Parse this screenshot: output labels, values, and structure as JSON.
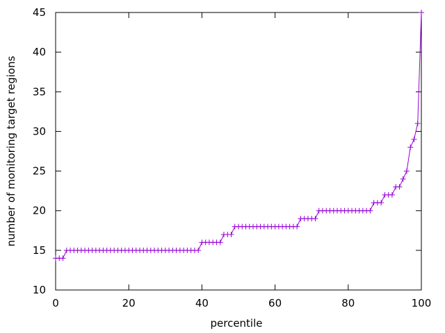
{
  "chart_data": {
    "type": "line",
    "x_label": "percentile",
    "y_label": "number of monitoring target regions",
    "xlim": [
      0,
      100
    ],
    "xticks": [
      0,
      20,
      40,
      60,
      80,
      100
    ],
    "ylim": [
      10,
      45
    ],
    "yticks": [
      10,
      15,
      20,
      25,
      30,
      35,
      40,
      45
    ],
    "series": [
      {
        "color": "#9400d3",
        "x": [
          0,
          1,
          2,
          3,
          4,
          5,
          6,
          7,
          8,
          9,
          10,
          11,
          12,
          13,
          14,
          15,
          16,
          17,
          18,
          19,
          20,
          21,
          22,
          23,
          24,
          25,
          26,
          27,
          28,
          29,
          30,
          31,
          32,
          33,
          34,
          35,
          36,
          37,
          38,
          39,
          40,
          41,
          42,
          43,
          44,
          45,
          46,
          47,
          48,
          49,
          50,
          51,
          52,
          53,
          54,
          55,
          56,
          57,
          58,
          59,
          60,
          61,
          62,
          63,
          64,
          65,
          66,
          67,
          68,
          69,
          70,
          71,
          72,
          73,
          74,
          75,
          76,
          77,
          78,
          79,
          80,
          81,
          82,
          83,
          84,
          85,
          86,
          87,
          88,
          89,
          90,
          91,
          92,
          93,
          94,
          95,
          96,
          97,
          98,
          99,
          100
        ],
        "values": [
          14,
          14,
          14,
          15,
          15,
          15,
          15,
          15,
          15,
          15,
          15,
          15,
          15,
          15,
          15,
          15,
          15,
          15,
          15,
          15,
          15,
          15,
          15,
          15,
          15,
          15,
          15,
          15,
          15,
          15,
          15,
          15,
          15,
          15,
          15,
          15,
          15,
          15,
          15,
          15,
          16,
          16,
          16,
          16,
          16,
          16,
          17,
          17,
          17,
          18,
          18,
          18,
          18,
          18,
          18,
          18,
          18,
          18,
          18,
          18,
          18,
          18,
          18,
          18,
          18,
          18,
          18,
          19,
          19,
          19,
          19,
          19,
          20,
          20,
          20,
          20,
          20,
          20,
          20,
          20,
          20,
          20,
          20,
          20,
          20,
          20,
          20,
          21,
          21,
          21,
          22,
          22,
          22,
          23,
          23,
          24,
          25,
          28,
          29,
          31,
          45
        ]
      }
    ]
  }
}
